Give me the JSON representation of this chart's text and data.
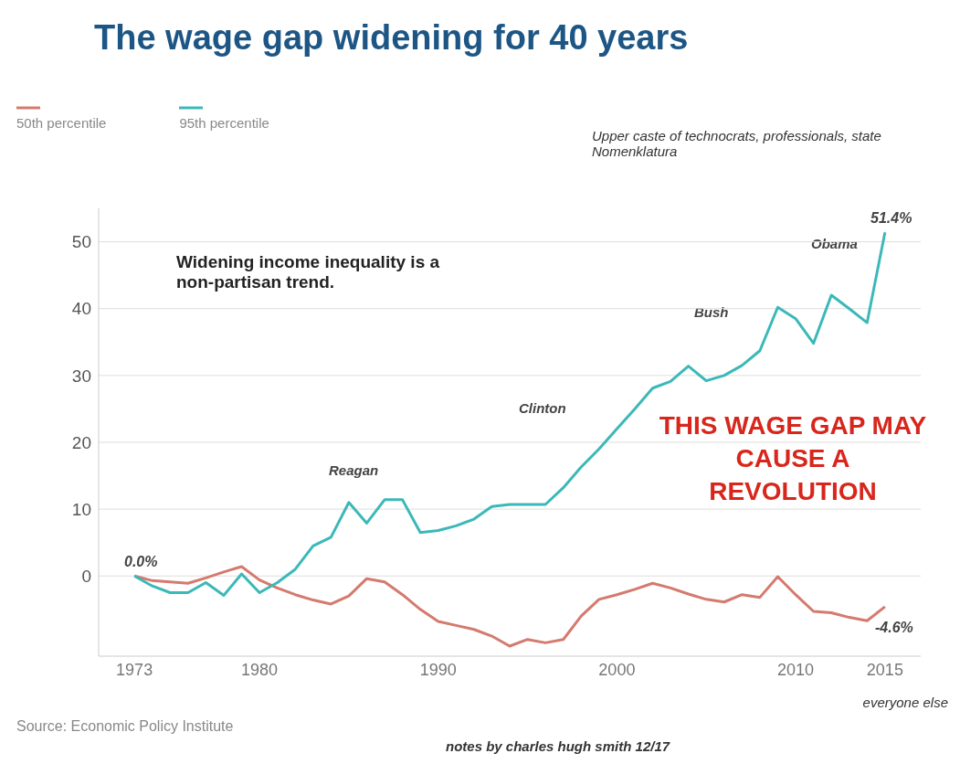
{
  "chart_data": {
    "type": "line",
    "title": "The wage gap widening for 40 years",
    "x": [
      1973,
      1974,
      1975,
      1976,
      1977,
      1978,
      1979,
      1980,
      1981,
      1982,
      1983,
      1984,
      1985,
      1986,
      1987,
      1988,
      1989,
      1990,
      1991,
      1992,
      1993,
      1994,
      1995,
      1996,
      1997,
      1998,
      1999,
      2000,
      2001,
      2002,
      2003,
      2004,
      2005,
      2006,
      2007,
      2008,
      2009,
      2010,
      2011,
      2012,
      2013,
      2014,
      2015
    ],
    "series": [
      {
        "name": "50th percentile",
        "color": "#d47a6e",
        "values": [
          0,
          -0.7,
          -0.9,
          -1.1,
          -0.3,
          0.6,
          1.4,
          -0.6,
          -1.8,
          -2.8,
          -3.6,
          -4.2,
          -3,
          -0.4,
          -0.9,
          -2.8,
          -5,
          -6.8,
          -7.4,
          -8,
          -9,
          -10.5,
          -9.5,
          -10,
          -9.5,
          -6,
          -3.5,
          -2.8,
          -2,
          -1.1,
          -1.8,
          -2.7,
          -3.5,
          -3.9,
          -2.8,
          -3.2,
          -0.1,
          -2.8,
          -5.3,
          -5.5,
          -6.2,
          -6.7,
          -4.6
        ]
      },
      {
        "name": "95th percentile",
        "color": "#3cb8b8",
        "values": [
          0,
          -1.5,
          -2.5,
          -2.5,
          -1,
          -2.9,
          0.3,
          -2.5,
          -1,
          1,
          4.5,
          5.8,
          11,
          7.9,
          11.4,
          11.4,
          6.5,
          6.8,
          7.5,
          8.5,
          10.4,
          10.7,
          10.7,
          10.7,
          13.2,
          16.3,
          19,
          22,
          25,
          28.1,
          29.1,
          31.4,
          29.2,
          30,
          31.5,
          33.7,
          40.2,
          38.5,
          34.8,
          42,
          40,
          37.9,
          51.4
        ]
      }
    ],
    "xlim": [
      1971,
      2017
    ],
    "xticks": [
      1973,
      1980,
      1990,
      2000,
      2010,
      2015
    ],
    "ylim": [
      -12,
      55
    ],
    "yticks": [
      0,
      10,
      20,
      30,
      40,
      50
    ],
    "grid": "y",
    "legend": "top left",
    "line_style": "solid",
    "annotations": [
      "Upper caste of technocrats, professionals, state Nomenklatura",
      "Widening income inequality is a  non-partisan trend.",
      "THIS WAGE GAP MAY CAUSE A REVOLUTION",
      "everyone else",
      "Source: Economic Policy Institute",
      "notes by charles hugh smith 12/17",
      "0.0%",
      "51.4%",
      "-4.6%",
      "Reagan",
      "Clinton",
      "Bush",
      "Obama"
    ]
  }
}
